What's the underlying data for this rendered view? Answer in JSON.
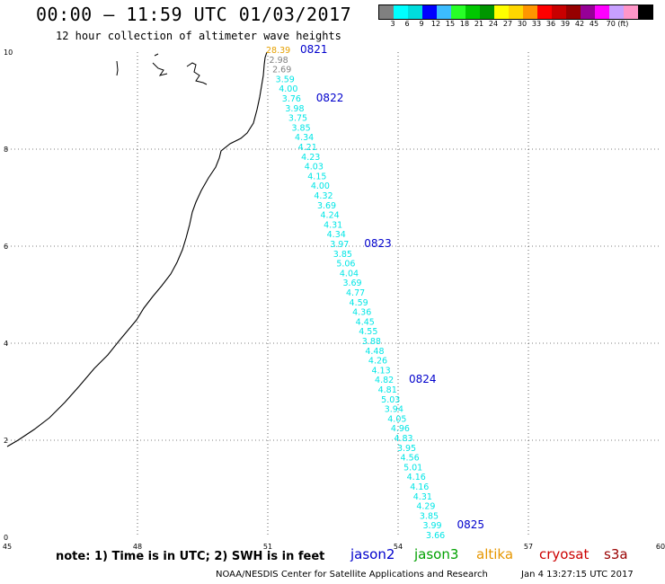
{
  "header": {
    "title": "00:00 – 11:59 UTC 01/03/2017",
    "subtitle": "12 hour collection of altimeter wave heights"
  },
  "legend": {
    "colors": [
      "#808080",
      "#00ffff",
      "#00dcdc",
      "#0000ff",
      "#3cbcff",
      "#28ff28",
      "#00c800",
      "#009600",
      "#ffff00",
      "#ffd700",
      "#ff9600",
      "#ff0000",
      "#c80000",
      "#960000",
      "#960096",
      "#ff00ff",
      "#c8a0ff",
      "#ff96c8",
      "#000000"
    ],
    "labels": [
      "3",
      "6",
      "9",
      "12",
      "15",
      "18",
      "21",
      "24",
      "27",
      "30",
      "33",
      "36",
      "39",
      "42",
      "45",
      "70 (ft)"
    ]
  },
  "axes": {
    "x_ticks": [
      "45",
      "48",
      "51",
      "54",
      "57",
      "60"
    ],
    "y_ticks": [
      "0",
      "2",
      "4",
      "6",
      "8",
      "10"
    ]
  },
  "track": {
    "color_cyan": "#00e6e6",
    "color_gray": "#808080",
    "color_orange": "#e6a000",
    "time_color": "#0000cc",
    "readings": [
      {
        "v": "28.39",
        "c": "orange"
      },
      {
        "v": "2.98",
        "c": "gray"
      },
      {
        "v": "2.69",
        "c": "gray"
      },
      {
        "v": "3.59",
        "c": "cyan"
      },
      {
        "v": "4.00",
        "c": "cyan"
      },
      {
        "v": "3.76",
        "c": "cyan"
      },
      {
        "v": "3.98",
        "c": "cyan"
      },
      {
        "v": "3.75",
        "c": "cyan"
      },
      {
        "v": "3.85",
        "c": "cyan"
      },
      {
        "v": "4.34",
        "c": "cyan"
      },
      {
        "v": "4.21",
        "c": "cyan"
      },
      {
        "v": "4.23",
        "c": "cyan"
      },
      {
        "v": "4.03",
        "c": "cyan"
      },
      {
        "v": "4.15",
        "c": "cyan"
      },
      {
        "v": "4.00",
        "c": "cyan"
      },
      {
        "v": "4.32",
        "c": "cyan"
      },
      {
        "v": "3.69",
        "c": "cyan"
      },
      {
        "v": "4.24",
        "c": "cyan"
      },
      {
        "v": "4.31",
        "c": "cyan"
      },
      {
        "v": "4.34",
        "c": "cyan"
      },
      {
        "v": "3.97",
        "c": "cyan"
      },
      {
        "v": "3.85",
        "c": "cyan"
      },
      {
        "v": "5.06",
        "c": "cyan"
      },
      {
        "v": "4.04",
        "c": "cyan"
      },
      {
        "v": "3.69",
        "c": "cyan"
      },
      {
        "v": "4.77",
        "c": "cyan"
      },
      {
        "v": "4.59",
        "c": "cyan"
      },
      {
        "v": "4.36",
        "c": "cyan"
      },
      {
        "v": "4.45",
        "c": "cyan"
      },
      {
        "v": "4.55",
        "c": "cyan"
      },
      {
        "v": "3.88",
        "c": "cyan"
      },
      {
        "v": "4.48",
        "c": "cyan"
      },
      {
        "v": "4.26",
        "c": "cyan"
      },
      {
        "v": "4.13",
        "c": "cyan"
      },
      {
        "v": "4.82",
        "c": "cyan"
      },
      {
        "v": "4.81",
        "c": "cyan"
      },
      {
        "v": "5.03",
        "c": "cyan"
      },
      {
        "v": "3.94",
        "c": "cyan"
      },
      {
        "v": "4.05",
        "c": "cyan"
      },
      {
        "v": "4.96",
        "c": "cyan"
      },
      {
        "v": "4.83",
        "c": "cyan"
      },
      {
        "v": "3.95",
        "c": "cyan"
      },
      {
        "v": "4.56",
        "c": "cyan"
      },
      {
        "v": "5.01",
        "c": "cyan"
      },
      {
        "v": "4.16",
        "c": "cyan"
      },
      {
        "v": "4.16",
        "c": "cyan"
      },
      {
        "v": "4.31",
        "c": "cyan"
      },
      {
        "v": "4.29",
        "c": "cyan"
      },
      {
        "v": "3.85",
        "c": "cyan"
      },
      {
        "v": "3.99",
        "c": "cyan"
      },
      {
        "v": "3.66",
        "c": "cyan"
      }
    ],
    "times": [
      {
        "label": "0821",
        "at": 0
      },
      {
        "label": "0822",
        "at": 5
      },
      {
        "label": "0823",
        "at": 20
      },
      {
        "label": "0824",
        "at": 34
      },
      {
        "label": "0825",
        "at": 49
      }
    ]
  },
  "note": "note: 1) Time is in UTC; 2) SWH is in feet",
  "missions": [
    {
      "name": "jason2",
      "color": "#0000cc"
    },
    {
      "name": "jason3",
      "color": "#00a000"
    },
    {
      "name": "altika",
      "color": "#e69600"
    },
    {
      "name": "cryosat",
      "color": "#cc0000"
    },
    {
      "name": "s3a",
      "color": "#990000"
    }
  ],
  "footer": {
    "credit": "NOAA/NESDIS Center for Satellite Applications and Research",
    "date": "Jan  4 13:27:15 UTC 2017"
  }
}
